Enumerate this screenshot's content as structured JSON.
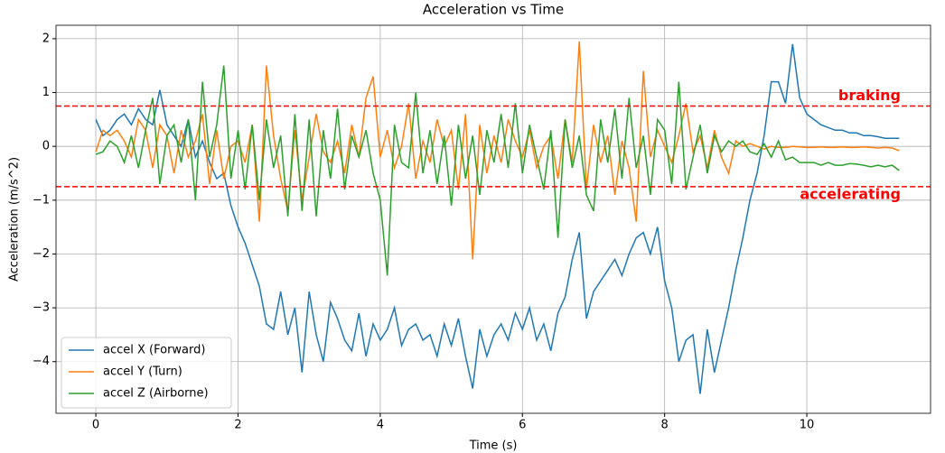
{
  "chart_data": {
    "type": "line",
    "title": "Acceleration vs Time",
    "x_label": "Time (s)",
    "y_label": "Acceleration (m/s^2)",
    "x": [
      0,
      0.1,
      0.2,
      0.3,
      0.4,
      0.5,
      0.6,
      0.7,
      0.8,
      0.9,
      1,
      1.1,
      1.2,
      1.3,
      1.4,
      1.5,
      1.6,
      1.7,
      1.8,
      1.9,
      2,
      2.1,
      2.2,
      2.3,
      2.4,
      2.5,
      2.6,
      2.7,
      2.8,
      2.9,
      3,
      3.1,
      3.2,
      3.3,
      3.4,
      3.5,
      3.6,
      3.7,
      3.8,
      3.9,
      4,
      4.1,
      4.2,
      4.3,
      4.4,
      4.5,
      4.6,
      4.7,
      4.8,
      4.9,
      5,
      5.1,
      5.2,
      5.3,
      5.4,
      5.5,
      5.6,
      5.7,
      5.8,
      5.9,
      6,
      6.1,
      6.2,
      6.3,
      6.4,
      6.5,
      6.6,
      6.7,
      6.8,
      6.9,
      7,
      7.1,
      7.2,
      7.3,
      7.4,
      7.5,
      7.6,
      7.7,
      7.8,
      7.9,
      8,
      8.1,
      8.2,
      8.3,
      8.4,
      8.5,
      8.6,
      8.7,
      8.8,
      8.9,
      9,
      9.1,
      9.2,
      9.3,
      9.4,
      9.5,
      9.6,
      9.7,
      9.8,
      9.9,
      10,
      10.1,
      10.2,
      10.3,
      10.4,
      10.5,
      10.6,
      10.7,
      10.8,
      10.9,
      11,
      11.1,
      11.2,
      11.3
    ],
    "series": [
      {
        "name": "accel X (Forward)",
        "color": "#1f77b4",
        "values": [
          0.5,
          0.2,
          0.3,
          0.5,
          0.6,
          0.4,
          0.7,
          0.5,
          0.4,
          1.05,
          0.4,
          0.2,
          0.0,
          0.5,
          -0.2,
          0.1,
          -0.3,
          -0.6,
          -0.5,
          -1.1,
          -1.5,
          -1.8,
          -2.2,
          -2.6,
          -3.3,
          -3.4,
          -2.7,
          -3.5,
          -3.0,
          -4.2,
          -2.7,
          -3.5,
          -4.0,
          -2.9,
          -3.2,
          -3.6,
          -3.8,
          -3.1,
          -3.9,
          -3.3,
          -3.6,
          -3.4,
          -3.0,
          -3.7,
          -3.4,
          -3.3,
          -3.6,
          -3.5,
          -3.9,
          -3.3,
          -3.7,
          -3.2,
          -3.9,
          -4.5,
          -3.4,
          -3.9,
          -3.5,
          -3.3,
          -3.6,
          -3.1,
          -3.4,
          -3.0,
          -3.6,
          -3.3,
          -3.8,
          -3.1,
          -2.8,
          -2.1,
          -1.6,
          -3.2,
          -2.7,
          -2.5,
          -2.3,
          -2.1,
          -2.4,
          -2.0,
          -1.7,
          -1.6,
          -2.0,
          -1.5,
          -2.5,
          -3.0,
          -4.0,
          -3.6,
          -3.5,
          -4.6,
          -3.4,
          -4.2,
          -3.6,
          -3.0,
          -2.3,
          -1.7,
          -1.0,
          -0.5,
          0.2,
          1.2,
          1.2,
          0.8,
          1.9,
          0.9,
          0.6,
          0.5,
          0.4,
          0.35,
          0.3,
          0.3,
          0.25,
          0.25,
          0.2,
          0.2,
          0.18,
          0.15,
          0.15,
          0.15
        ]
      },
      {
        "name": "accel Y (Turn)",
        "color": "#ff7f0e",
        "values": [
          -0.1,
          0.3,
          0.2,
          0.3,
          0.1,
          -0.2,
          0.5,
          0.3,
          -0.4,
          0.4,
          0.2,
          -0.5,
          0.3,
          -0.2,
          0.1,
          0.6,
          -0.7,
          0.3,
          -0.6,
          0.0,
          0.1,
          -0.3,
          0.4,
          -1.4,
          1.5,
          0.2,
          -0.6,
          -1.2,
          0.3,
          -1.0,
          -0.2,
          0.6,
          -0.1,
          -0.3,
          0.1,
          -0.5,
          0.4,
          -0.2,
          0.9,
          1.3,
          -0.2,
          0.3,
          -0.4,
          0.0,
          0.8,
          -0.6,
          0.1,
          -0.3,
          0.5,
          0.0,
          0.3,
          -0.8,
          0.6,
          -2.1,
          0.4,
          -0.5,
          0.2,
          -0.3,
          0.5,
          0.1,
          -0.2,
          0.3,
          -0.4,
          0.0,
          0.2,
          -0.6,
          0.5,
          -0.3,
          1.95,
          -0.8,
          0.4,
          -0.3,
          0.2,
          -0.9,
          0.1,
          -0.4,
          -1.4,
          1.4,
          -0.2,
          0.3,
          0.0,
          -0.3,
          0.2,
          0.8,
          -0.1,
          0.2,
          -0.4,
          0.3,
          -0.2,
          -0.5,
          0.1,
          0.0,
          0.05,
          0.0,
          -0.05,
          0.0,
          -0.02,
          -0.02,
          0.0,
          -0.01,
          -0.02,
          -0.02,
          -0.01,
          -0.02,
          -0.02,
          -0.01,
          -0.02,
          -0.02,
          -0.01,
          -0.02,
          -0.03,
          -0.02,
          -0.03,
          -0.08
        ]
      },
      {
        "name": "accel Z (Airborne)",
        "color": "#2ca02c",
        "values": [
          -0.15,
          -0.1,
          0.1,
          0.0,
          -0.3,
          0.2,
          -0.4,
          0.3,
          0.9,
          -0.7,
          0.2,
          0.4,
          -0.3,
          0.5,
          -1.0,
          1.2,
          -0.2,
          0.4,
          1.5,
          -0.6,
          0.3,
          -0.8,
          0.4,
          -1.0,
          0.5,
          -0.4,
          0.2,
          -1.3,
          0.6,
          -1.2,
          0.5,
          -1.3,
          0.3,
          -0.6,
          0.7,
          -0.8,
          0.2,
          -0.2,
          0.3,
          -0.5,
          -1.0,
          -2.4,
          0.4,
          -0.3,
          -0.4,
          1.0,
          -0.5,
          0.3,
          -0.7,
          0.2,
          -1.1,
          0.4,
          -0.6,
          0.2,
          -0.9,
          0.3,
          -0.3,
          0.6,
          -0.4,
          0.8,
          -0.5,
          0.4,
          -0.2,
          -0.8,
          0.3,
          -1.7,
          0.5,
          -0.4,
          0.2,
          -0.9,
          -1.2,
          0.5,
          -0.3,
          0.7,
          -0.6,
          0.9,
          -0.4,
          0.2,
          -0.9,
          0.5,
          0.3,
          -0.7,
          1.2,
          -0.8,
          -0.2,
          0.4,
          -0.5,
          0.2,
          -0.1,
          0.1,
          0.0,
          0.1,
          -0.1,
          -0.15,
          0.05,
          -0.2,
          0.1,
          -0.25,
          -0.2,
          -0.3,
          -0.3,
          -0.3,
          -0.35,
          -0.3,
          -0.35,
          -0.35,
          -0.32,
          -0.33,
          -0.35,
          -0.38,
          -0.35,
          -0.38,
          -0.35,
          -0.45
        ]
      }
    ],
    "xlim": [
      -0.56,
      11.74
    ],
    "ylim": [
      -4.96,
      2.25
    ],
    "xticks": [
      0,
      2,
      4,
      6,
      8,
      10
    ],
    "yticks": [
      {
        "value": -4,
        "label": "−4"
      },
      {
        "value": -3,
        "label": "−3"
      },
      {
        "value": -2,
        "label": "−2"
      },
      {
        "value": -1,
        "label": "−1"
      },
      0,
      1,
      2
    ],
    "grid": true,
    "legend": "lower left",
    "reference_lines": [
      {
        "value": 0.75,
        "label": "braking",
        "color": "#ff0000"
      },
      {
        "value": -0.75,
        "label": "accelerating",
        "color": "#ff0000"
      }
    ]
  }
}
